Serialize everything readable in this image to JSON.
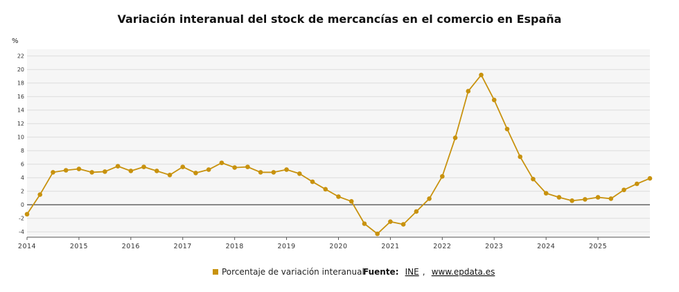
{
  "chart_data": {
    "type": "line",
    "title": "Variación interanual del stock de mercancías en el comercio en España",
    "ylabel": "%",
    "xlabel": "",
    "ylim": [
      -4.8,
      23
    ],
    "yticks": [
      -4,
      -2,
      0,
      2,
      4,
      6,
      8,
      10,
      12,
      14,
      16,
      18,
      20,
      22
    ],
    "xlim": [
      2014,
      2026
    ],
    "xticks": [
      "2014",
      "2015",
      "2016",
      "2017",
      "2018",
      "2019",
      "2020",
      "2021",
      "2022",
      "2023",
      "2024",
      "2025"
    ],
    "grid": true,
    "zero_line": true,
    "legend_position": "bottom",
    "series": [
      {
        "name": "Porcentaje de variación interanual",
        "color": "#c8920e",
        "x": [
          2014.0,
          2014.25,
          2014.5,
          2014.75,
          2015.0,
          2015.25,
          2015.5,
          2015.75,
          2016.0,
          2016.25,
          2016.5,
          2016.75,
          2017.0,
          2017.25,
          2017.5,
          2017.75,
          2018.0,
          2018.25,
          2018.5,
          2018.75,
          2019.0,
          2019.25,
          2019.5,
          2019.75,
          2020.0,
          2020.25,
          2020.5,
          2020.75,
          2021.0,
          2021.25,
          2021.5,
          2021.75,
          2022.0,
          2022.25,
          2022.5,
          2022.75,
          2023.0,
          2023.25,
          2023.5,
          2023.75,
          2024.0,
          2024.25,
          2024.5,
          2024.75,
          2025.0,
          2025.25,
          2025.5,
          2025.75,
          2026.0
        ],
        "values": [
          -1.4,
          1.5,
          4.8,
          5.1,
          5.3,
          4.8,
          4.9,
          5.7,
          5.0,
          5.6,
          5.0,
          4.4,
          5.6,
          4.7,
          5.2,
          6.2,
          5.5,
          5.6,
          4.8,
          4.8,
          5.2,
          4.6,
          3.4,
          2.3,
          1.2,
          0.5,
          -2.8,
          -4.3,
          -2.5,
          -2.9,
          -1.0,
          0.9,
          4.2,
          9.9,
          16.8,
          19.2,
          15.5,
          11.2,
          7.1,
          3.8,
          1.7,
          1.1,
          0.6,
          0.8,
          1.1,
          0.9,
          2.2,
          3.1,
          3.9
        ]
      }
    ]
  },
  "legend": {
    "items": [
      {
        "label": "Porcentaje de variación interanual",
        "color": "#c8920e"
      }
    ]
  },
  "source": {
    "label": "Fuente:",
    "links": [
      "INE",
      "www.epdata.es"
    ],
    "separator": ","
  }
}
